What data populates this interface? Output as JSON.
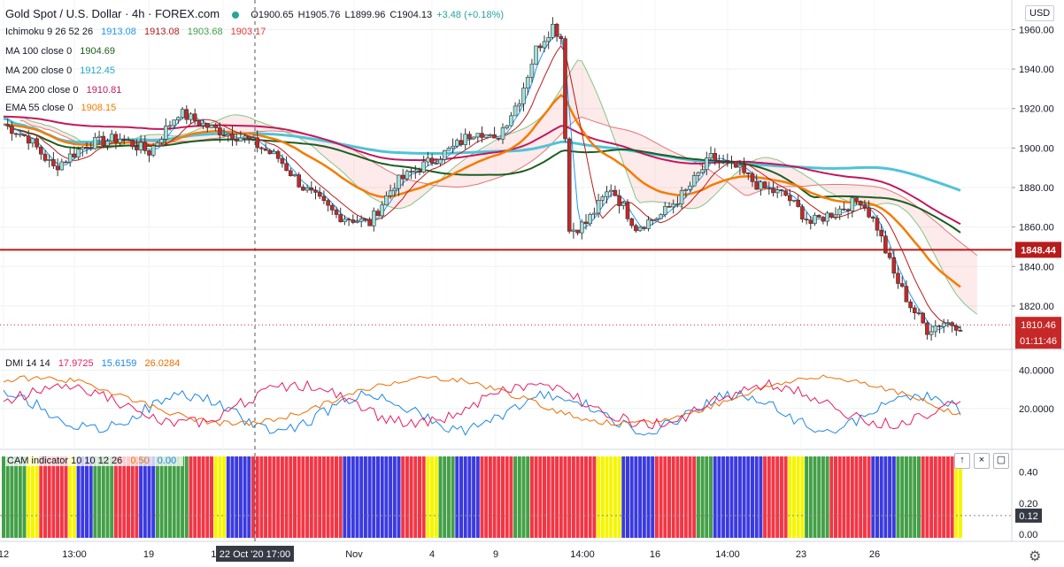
{
  "header": {
    "title": "Gold Spot / U.S. Dollar · 4h · FOREX.com",
    "ohlc": [
      "O1900.65",
      "H1905.76",
      "L1899.96",
      "C1904.13",
      "+3.48 (+0.18%)"
    ],
    "currency": "USD"
  },
  "indicators": [
    {
      "name": "Ichimoku 9 26 52 26",
      "values": [
        "1913.08",
        "1913.08",
        "1903.68",
        "1903.17"
      ],
      "colors": [
        "#2196f3",
        "#b71c1c",
        "#43a047",
        "#e53935"
      ]
    },
    {
      "name": "MA 100 close 0",
      "values": [
        "1904.69"
      ],
      "colors": [
        "#1b5e20"
      ]
    },
    {
      "name": "MA 200 close 0",
      "values": [
        "1912.45"
      ],
      "colors": [
        "#26a6c6"
      ]
    },
    {
      "name": "EMA 200 close 0",
      "values": [
        "1910.81"
      ],
      "colors": [
        "#c2185b"
      ]
    },
    {
      "name": "EMA 55 close 0",
      "values": [
        "1908.15"
      ],
      "colors": [
        "#f57c00"
      ]
    }
  ],
  "dmi": {
    "name": "DMI 14 14",
    "values": [
      "17.9725",
      "15.6159",
      "26.0284"
    ],
    "colors": [
      "#e91e63",
      "#1e88e5",
      "#ef6c00"
    ]
  },
  "cam": {
    "name": "CAM indicator 10 10 12 26",
    "values": [
      "0.50",
      "0.00"
    ]
  },
  "price_labels": {
    "horizontal": "1848.44",
    "current": "1810.46",
    "countdown": "01:11:46"
  },
  "osc_label": "0.12",
  "crosshair_time": "22 Oct '20   17:00",
  "chart_data": {
    "type": "candlestick",
    "timeframe": "4h",
    "price_axis": {
      "min": 1798,
      "max": 1975,
      "ticks": [
        1820,
        1840,
        1860,
        1880,
        1900,
        1920,
        1940,
        1960
      ]
    },
    "time_ticks": [
      "12",
      "13:00",
      "19",
      "13:00",
      "Nov",
      "4",
      "9",
      "14:00",
      "16",
      "14:00",
      "23",
      "26"
    ],
    "horizontal_line": 1848.44,
    "current_price": 1810.46,
    "price_path": [
      [
        0,
        1912
      ],
      [
        6,
        1905
      ],
      [
        12,
        1890
      ],
      [
        20,
        1902
      ],
      [
        28,
        1905
      ],
      [
        35,
        1898
      ],
      [
        42,
        1918
      ],
      [
        50,
        1910
      ],
      [
        58,
        1905
      ],
      [
        66,
        1895
      ],
      [
        72,
        1880
      ],
      [
        80,
        1866
      ],
      [
        88,
        1862
      ],
      [
        94,
        1882
      ],
      [
        100,
        1890
      ],
      [
        108,
        1900
      ],
      [
        114,
        1910
      ],
      [
        118,
        1903
      ],
      [
        124,
        1925
      ],
      [
        128,
        1950
      ],
      [
        132,
        1962
      ],
      [
        134,
        1956
      ],
      [
        136,
        1858
      ],
      [
        140,
        1862
      ],
      [
        146,
        1880
      ],
      [
        152,
        1860
      ],
      [
        158,
        1866
      ],
      [
        164,
        1878
      ],
      [
        170,
        1895
      ],
      [
        176,
        1890
      ],
      [
        182,
        1880
      ],
      [
        188,
        1876
      ],
      [
        194,
        1862
      ],
      [
        200,
        1868
      ],
      [
        206,
        1874
      ],
      [
        210,
        1860
      ],
      [
        214,
        1836
      ],
      [
        218,
        1820
      ],
      [
        222,
        1808
      ],
      [
        226,
        1812
      ],
      [
        230,
        1810
      ]
    ],
    "dmi_axis": {
      "ticks": [
        20,
        40
      ]
    },
    "cam_axis": {
      "ticks": [
        0.0,
        0.2,
        0.4
      ]
    },
    "cam_colors": {
      "red": "#f23645",
      "blue": "#3a3ae0",
      "green": "#43a047",
      "yellow": "#f5f500"
    }
  },
  "pane_buttons": [
    "↑",
    "×",
    "▢"
  ]
}
